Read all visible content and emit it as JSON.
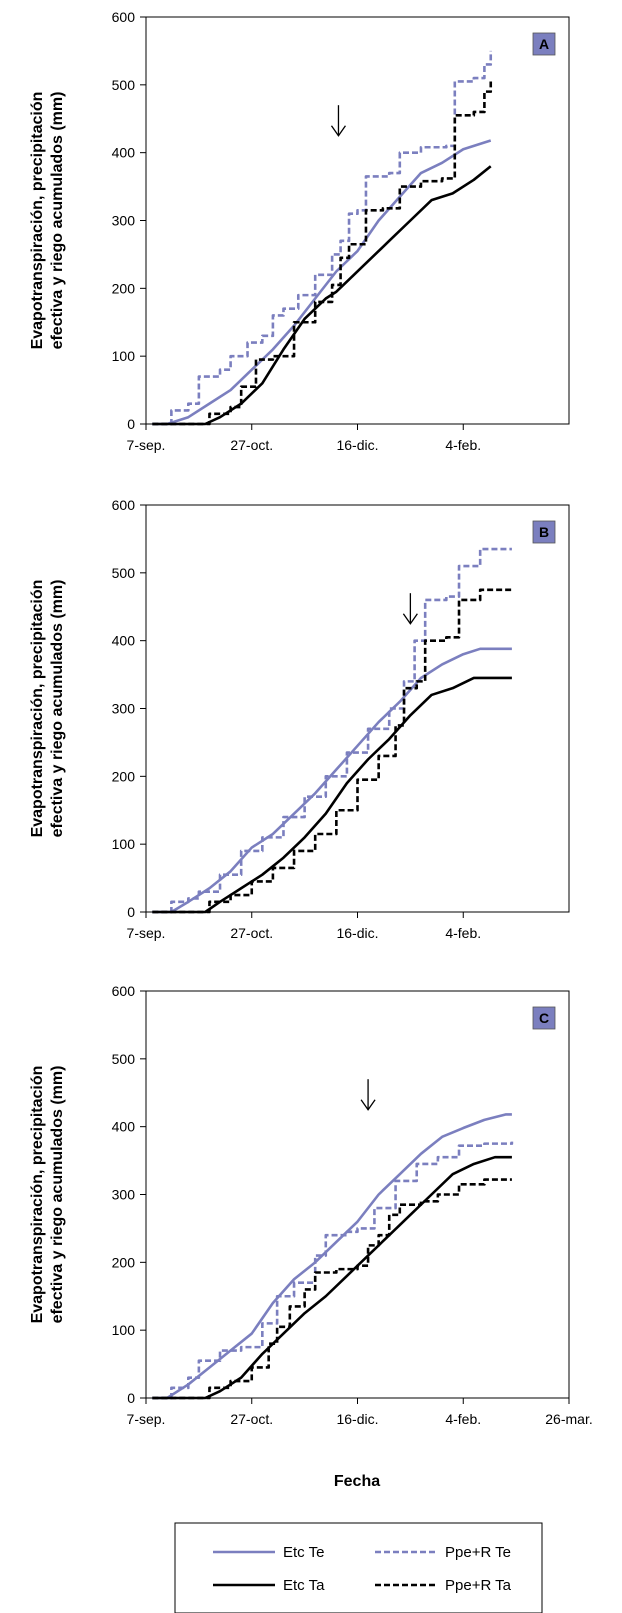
{
  "figure": {
    "y_axis_label_line1": "Evapotranspiración, precipitación",
    "y_axis_label_line2": "efectiva y riego acumulados (mm)",
    "x_axis_label": "Fecha"
  },
  "legend": {
    "entries": [
      {
        "label": "Etc Te",
        "color": "#7b7fbf",
        "dash": "solid"
      },
      {
        "label": "Ppe+R Te",
        "color": "#7b7fbf",
        "dash": "dashed"
      },
      {
        "label": "Etc Ta",
        "color": "#000000",
        "dash": "solid"
      },
      {
        "label": "Ppe+R Ta",
        "color": "#000000",
        "dash": "dashed"
      }
    ]
  },
  "colors": {
    "te": "#7b7fbf",
    "ta": "#000000",
    "badge_fill": "#7b7fbf",
    "axis": "#000000"
  },
  "chart_data": [
    {
      "type": "line",
      "panel": "A",
      "x_unit": "days since 7-sep.",
      "xticks": [
        {
          "v": 0,
          "label": "7-sep."
        },
        {
          "v": 50,
          "label": "27-oct."
        },
        {
          "v": 100,
          "label": "16-dic."
        },
        {
          "v": 150,
          "label": "4-feb."
        }
      ],
      "xlim": [
        0,
        200
      ],
      "ylim": [
        0,
        600
      ],
      "yticks": [
        0,
        100,
        200,
        300,
        400,
        500,
        600
      ],
      "arrow_x": 91,
      "series": [
        {
          "name": "Etc Te",
          "color": "#7b7fbf",
          "dash": false,
          "step": false,
          "points": [
            [
              3,
              0
            ],
            [
              10,
              0
            ],
            [
              20,
              10
            ],
            [
              30,
              30
            ],
            [
              40,
              50
            ],
            [
              50,
              80
            ],
            [
              60,
              110
            ],
            [
              70,
              145
            ],
            [
              80,
              185
            ],
            [
              90,
              225
            ],
            [
              100,
              255
            ],
            [
              110,
              300
            ],
            [
              120,
              335
            ],
            [
              130,
              370
            ],
            [
              140,
              385
            ],
            [
              150,
              405
            ],
            [
              160,
              415
            ],
            [
              163,
              418
            ]
          ]
        },
        {
          "name": "Ppe+R Te",
          "color": "#7b7fbf",
          "dash": true,
          "step": true,
          "points": [
            [
              3,
              0
            ],
            [
              10,
              0
            ],
            [
              12,
              20
            ],
            [
              20,
              30
            ],
            [
              25,
              70
            ],
            [
              35,
              80
            ],
            [
              40,
              100
            ],
            [
              48,
              120
            ],
            [
              55,
              130
            ],
            [
              60,
              160
            ],
            [
              65,
              170
            ],
            [
              72,
              190
            ],
            [
              80,
              220
            ],
            [
              88,
              250
            ],
            [
              92,
              270
            ],
            [
              96,
              310
            ],
            [
              100,
              315
            ],
            [
              104,
              365
            ],
            [
              115,
              370
            ],
            [
              120,
              400
            ],
            [
              130,
              408
            ],
            [
              142,
              410
            ],
            [
              146,
              505
            ],
            [
              155,
              510
            ],
            [
              160,
              530
            ],
            [
              163,
              550
            ]
          ]
        },
        {
          "name": "Etc Ta",
          "color": "#000000",
          "dash": false,
          "step": false,
          "points": [
            [
              3,
              0
            ],
            [
              28,
              0
            ],
            [
              35,
              10
            ],
            [
              45,
              30
            ],
            [
              55,
              60
            ],
            [
              65,
              110
            ],
            [
              75,
              155
            ],
            [
              85,
              185
            ],
            [
              90,
              195
            ],
            [
              95,
              210
            ],
            [
              105,
              240
            ],
            [
              115,
              270
            ],
            [
              125,
              300
            ],
            [
              135,
              330
            ],
            [
              145,
              340
            ],
            [
              155,
              360
            ],
            [
              163,
              380
            ]
          ]
        },
        {
          "name": "Ppe+R Ta",
          "color": "#000000",
          "dash": true,
          "step": true,
          "points": [
            [
              3,
              0
            ],
            [
              28,
              0
            ],
            [
              30,
              15
            ],
            [
              40,
              25
            ],
            [
              45,
              55
            ],
            [
              52,
              95
            ],
            [
              60,
              100
            ],
            [
              70,
              150
            ],
            [
              80,
              180
            ],
            [
              88,
              205
            ],
            [
              92,
              245
            ],
            [
              96,
              265
            ],
            [
              104,
              315
            ],
            [
              112,
              318
            ],
            [
              120,
              350
            ],
            [
              130,
              358
            ],
            [
              140,
              362
            ],
            [
              146,
              455
            ],
            [
              155,
              460
            ],
            [
              160,
              490
            ],
            [
              163,
              505
            ]
          ]
        }
      ]
    },
    {
      "type": "line",
      "panel": "B",
      "x_unit": "days since 7-sep.",
      "xticks": [
        {
          "v": 0,
          "label": "7-sep."
        },
        {
          "v": 50,
          "label": "27-oct."
        },
        {
          "v": 100,
          "label": "16-dic."
        },
        {
          "v": 150,
          "label": "4-feb."
        }
      ],
      "xlim": [
        0,
        200
      ],
      "ylim": [
        0,
        600
      ],
      "yticks": [
        0,
        100,
        200,
        300,
        400,
        500,
        600
      ],
      "arrow_x": 125,
      "series": [
        {
          "name": "Etc Te",
          "color": "#7b7fbf",
          "dash": false,
          "step": false,
          "points": [
            [
              3,
              0
            ],
            [
              12,
              0
            ],
            [
              20,
              15
            ],
            [
              30,
              35
            ],
            [
              40,
              60
            ],
            [
              50,
              95
            ],
            [
              60,
              115
            ],
            [
              70,
              145
            ],
            [
              80,
              175
            ],
            [
              90,
              210
            ],
            [
              100,
              245
            ],
            [
              110,
              280
            ],
            [
              120,
              310
            ],
            [
              130,
              345
            ],
            [
              140,
              365
            ],
            [
              150,
              380
            ],
            [
              158,
              388
            ],
            [
              173,
              388
            ]
          ]
        },
        {
          "name": "Ppe+R Te",
          "color": "#7b7fbf",
          "dash": true,
          "step": true,
          "points": [
            [
              3,
              0
            ],
            [
              10,
              0
            ],
            [
              12,
              15
            ],
            [
              20,
              20
            ],
            [
              25,
              30
            ],
            [
              35,
              55
            ],
            [
              45,
              90
            ],
            [
              55,
              110
            ],
            [
              65,
              140
            ],
            [
              75,
              170
            ],
            [
              85,
              200
            ],
            [
              95,
              235
            ],
            [
              105,
              270
            ],
            [
              115,
              300
            ],
            [
              122,
              340
            ],
            [
              127,
              400
            ],
            [
              132,
              460
            ],
            [
              142,
              465
            ],
            [
              148,
              510
            ],
            [
              158,
              535
            ],
            [
              173,
              535
            ]
          ]
        },
        {
          "name": "Etc Ta",
          "color": "#000000",
          "dash": false,
          "step": false,
          "points": [
            [
              3,
              0
            ],
            [
              28,
              0
            ],
            [
              35,
              15
            ],
            [
              45,
              35
            ],
            [
              55,
              55
            ],
            [
              65,
              80
            ],
            [
              75,
              110
            ],
            [
              85,
              145
            ],
            [
              95,
              190
            ],
            [
              105,
              225
            ],
            [
              115,
              255
            ],
            [
              125,
              290
            ],
            [
              135,
              320
            ],
            [
              145,
              330
            ],
            [
              155,
              345
            ],
            [
              173,
              345
            ]
          ]
        },
        {
          "name": "Ppe+R Ta",
          "color": "#000000",
          "dash": true,
          "step": true,
          "points": [
            [
              3,
              0
            ],
            [
              28,
              0
            ],
            [
              30,
              15
            ],
            [
              40,
              25
            ],
            [
              50,
              45
            ],
            [
              60,
              65
            ],
            [
              70,
              90
            ],
            [
              80,
              115
            ],
            [
              90,
              150
            ],
            [
              100,
              195
            ],
            [
              110,
              230
            ],
            [
              118,
              275
            ],
            [
              122,
              330
            ],
            [
              128,
              340
            ],
            [
              132,
              400
            ],
            [
              142,
              405
            ],
            [
              148,
              460
            ],
            [
              158,
              475
            ],
            [
              173,
              475
            ]
          ]
        }
      ]
    },
    {
      "type": "line",
      "panel": "C",
      "x_unit": "days since 7-sep.",
      "xticks": [
        {
          "v": 0,
          "label": "7-sep."
        },
        {
          "v": 50,
          "label": "27-oct."
        },
        {
          "v": 100,
          "label": "16-dic."
        },
        {
          "v": 150,
          "label": "4-feb."
        },
        {
          "v": 200,
          "label": "26-mar."
        }
      ],
      "xlim": [
        0,
        200
      ],
      "ylim": [
        0,
        600
      ],
      "yticks": [
        0,
        100,
        200,
        300,
        400,
        500,
        600
      ],
      "arrow_x": 105,
      "series": [
        {
          "name": "Etc Te",
          "color": "#7b7fbf",
          "dash": false,
          "step": false,
          "points": [
            [
              3,
              0
            ],
            [
              10,
              0
            ],
            [
              20,
              20
            ],
            [
              30,
              45
            ],
            [
              40,
              70
            ],
            [
              50,
              95
            ],
            [
              60,
              140
            ],
            [
              70,
              175
            ],
            [
              80,
              200
            ],
            [
              90,
              230
            ],
            [
              100,
              260
            ],
            [
              110,
              300
            ],
            [
              120,
              330
            ],
            [
              130,
              360
            ],
            [
              140,
              385
            ],
            [
              150,
              398
            ],
            [
              160,
              410
            ],
            [
              170,
              418
            ],
            [
              173,
              418
            ]
          ]
        },
        {
          "name": "Ppe+R Te",
          "color": "#7b7fbf",
          "dash": true,
          "step": true,
          "points": [
            [
              3,
              0
            ],
            [
              10,
              0
            ],
            [
              12,
              15
            ],
            [
              20,
              30
            ],
            [
              25,
              55
            ],
            [
              35,
              70
            ],
            [
              45,
              75
            ],
            [
              55,
              110
            ],
            [
              62,
              150
            ],
            [
              70,
              170
            ],
            [
              80,
              210
            ],
            [
              85,
              240
            ],
            [
              95,
              245
            ],
            [
              100,
              250
            ],
            [
              108,
              280
            ],
            [
              118,
              320
            ],
            [
              128,
              345
            ],
            [
              138,
              355
            ],
            [
              148,
              372
            ],
            [
              160,
              375
            ],
            [
              173,
              378
            ]
          ]
        },
        {
          "name": "Etc Ta",
          "color": "#000000",
          "dash": false,
          "step": false,
          "points": [
            [
              3,
              0
            ],
            [
              28,
              0
            ],
            [
              35,
              10
            ],
            [
              45,
              30
            ],
            [
              55,
              65
            ],
            [
              65,
              95
            ],
            [
              75,
              125
            ],
            [
              85,
              150
            ],
            [
              95,
              180
            ],
            [
              105,
              210
            ],
            [
              115,
              240
            ],
            [
              125,
              270
            ],
            [
              135,
              300
            ],
            [
              145,
              330
            ],
            [
              155,
              345
            ],
            [
              165,
              355
            ],
            [
              173,
              355
            ]
          ]
        },
        {
          "name": "Ppe+R Ta",
          "color": "#000000",
          "dash": true,
          "step": true,
          "points": [
            [
              3,
              0
            ],
            [
              28,
              0
            ],
            [
              30,
              15
            ],
            [
              40,
              25
            ],
            [
              50,
              45
            ],
            [
              58,
              80
            ],
            [
              62,
              105
            ],
            [
              68,
              135
            ],
            [
              75,
              160
            ],
            [
              80,
              185
            ],
            [
              90,
              190
            ],
            [
              100,
              195
            ],
            [
              105,
              225
            ],
            [
              110,
              240
            ],
            [
              115,
              270
            ],
            [
              120,
              285
            ],
            [
              130,
              290
            ],
            [
              138,
              300
            ],
            [
              148,
              315
            ],
            [
              160,
              322
            ],
            [
              173,
              322
            ]
          ]
        }
      ]
    }
  ]
}
